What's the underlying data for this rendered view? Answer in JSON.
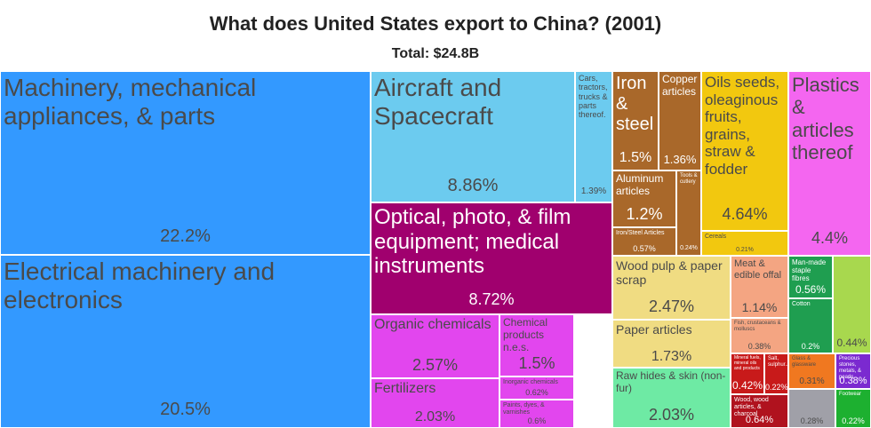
{
  "chart_data": {
    "type": "treemap",
    "title": "What does United States export to China? (2001)",
    "subtitle": "Total: $24.8B",
    "items": [
      {
        "name": "Machinery, mechanical appliances, & parts",
        "value": 22.2,
        "value_label": "22.2%",
        "color": "#3399ff"
      },
      {
        "name": "Electrical machinery and electronics",
        "value": 20.5,
        "value_label": "20.5%",
        "color": "#3399ff"
      },
      {
        "name": "Aircraft and Spacecraft",
        "value": 8.86,
        "value_label": "8.86%",
        "color": "#6ccbef"
      },
      {
        "name": "Cars, tractors, trucks & parts thereof.",
        "value": 1.39,
        "value_label": "1.39%",
        "color": "#6ccbef"
      },
      {
        "name": "Optical, photo, & film equipment; medical instruments",
        "value": 8.72,
        "value_label": "8.72%",
        "color": "#a0006e"
      },
      {
        "name": "Organic chemicals",
        "value": 2.57,
        "value_label": "2.57%",
        "color": "#e246ee"
      },
      {
        "name": "Fertilizers",
        "value": 2.03,
        "value_label": "2.03%",
        "color": "#e246ee"
      },
      {
        "name": "Chemical products n.e.s.",
        "value": 1.5,
        "value_label": "1.5%",
        "color": "#e246ee"
      },
      {
        "name": "Inorganic chemicals",
        "value": 0.62,
        "value_label": "0.62%",
        "color": "#e246ee"
      },
      {
        "name": "Paints, dyes, & varnishes",
        "value": 0.6,
        "value_label": "0.6%",
        "color": "#e246ee"
      },
      {
        "name": "Iron & steel",
        "value": 1.5,
        "value_label": "1.5%",
        "color": "#a9682a"
      },
      {
        "name": "Copper articles",
        "value": 1.36,
        "value_label": "1.36%",
        "color": "#a9682a"
      },
      {
        "name": "Aluminum articles",
        "value": 1.2,
        "value_label": "1.2%",
        "color": "#a9682a"
      },
      {
        "name": "Iron/Steel Articles",
        "value": 0.57,
        "value_label": "0.57%",
        "color": "#a9682a"
      },
      {
        "name": "Tools & cutlery",
        "value": 0.24,
        "value_label": "0.24%",
        "color": "#a9682a"
      },
      {
        "name": "Oils seeds, oleaginous fruits, grains, straw & fodder",
        "value": 4.64,
        "value_label": "4.64%",
        "color": "#f2c80f"
      },
      {
        "name": "Cereals",
        "value": 0.21,
        "value_label": "0.21%",
        "color": "#f2c80f"
      },
      {
        "name": "Plastics & articles thereof",
        "value": 4.4,
        "value_label": "4.4%",
        "color": "#f466f0"
      },
      {
        "name": "Wood pulp & paper scrap",
        "value": 2.47,
        "value_label": "2.47%",
        "color": "#f0dc82"
      },
      {
        "name": "Paper articles",
        "value": 1.73,
        "value_label": "1.73%",
        "color": "#f0dc82"
      },
      {
        "name": "Raw hides & skin (non-fur)",
        "value": 2.03,
        "value_label": "2.03%",
        "color": "#6eeaa4"
      },
      {
        "name": "Meat & edible offal",
        "value": 1.14,
        "value_label": "1.14%",
        "color": "#f4a582"
      },
      {
        "name": "Fish, crustaceans & molluscs",
        "value": 0.38,
        "value_label": "0.38%",
        "color": "#f4a582"
      },
      {
        "name": "Man-made staple fibres",
        "value": 0.56,
        "value_label": "0.56%",
        "color": "#1f9e50"
      },
      {
        "name": "Cotton",
        "value": 0.2,
        "value_label": "0.2%",
        "color": "#1f9e50"
      },
      {
        "value": 0.44,
        "value_label": "0.44%",
        "color": "#a8d84e"
      },
      {
        "name": "Mineral fuels, mineral oils and products",
        "value": 0.42,
        "value_label": "0.42%",
        "color": "#c81a1a"
      },
      {
        "name": "Salt, sulphur...",
        "value": 0.22,
        "value_label": "0.22%",
        "color": "#c81a1a"
      },
      {
        "name": "Wood, wood articles, & charcoal",
        "value": 0.64,
        "value_label": "0.64%",
        "color": "#b0121e"
      },
      {
        "name": "Glass & glassware",
        "value": 0.31,
        "value_label": "0.31%",
        "color": "#f07820"
      },
      {
        "name": "Precious stones, metals, & pearls",
        "value": 0.38,
        "value_label": "0.38%",
        "color": "#7b2ad0"
      },
      {
        "name": "Footwear",
        "value": 0.22,
        "value_label": "0.22%",
        "color": "#1db030"
      },
      {
        "value": 0.28,
        "value_label": "0.28%",
        "color": "#a0a0a8"
      }
    ]
  }
}
